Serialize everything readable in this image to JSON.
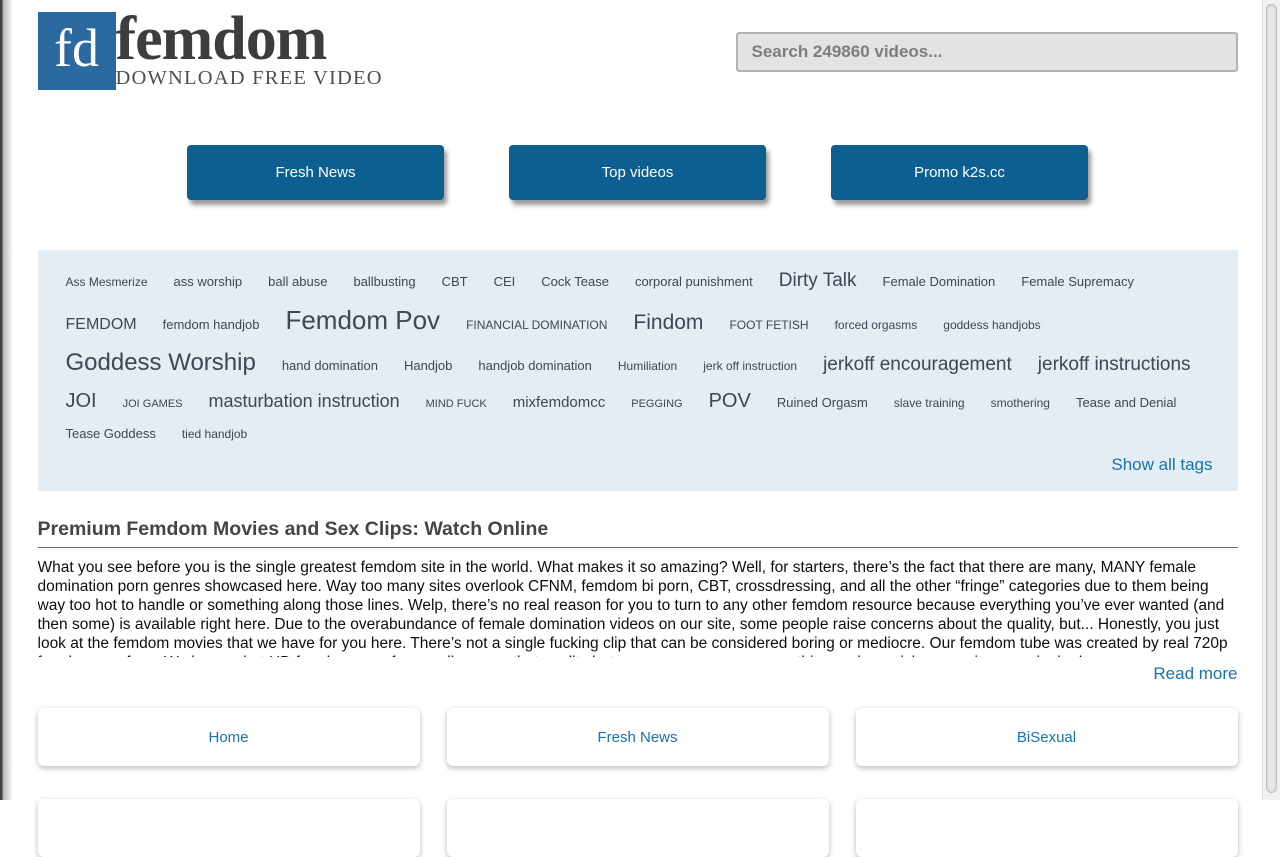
{
  "header": {
    "logo": {
      "abbr": "fd",
      "name": "femdom",
      "tagline": "DOWNLOAD FREE VIDEO"
    },
    "search": {
      "placeholder": "Search 249860 videos..."
    }
  },
  "nav": {
    "buttons": [
      {
        "label": "Fresh News"
      },
      {
        "label": "Top videos"
      },
      {
        "label": "Promo k2s.cc"
      }
    ]
  },
  "tag_cloud": {
    "show_all_label": "Show all tags",
    "tags": [
      {
        "label": "Ass Mesmerize",
        "size": 12
      },
      {
        "label": "ass worship",
        "size": 13
      },
      {
        "label": "ball abuse",
        "size": 13
      },
      {
        "label": "ballbusting",
        "size": 13
      },
      {
        "label": "CBT",
        "size": 13
      },
      {
        "label": "CEI",
        "size": 13
      },
      {
        "label": "Cock Tease",
        "size": 13
      },
      {
        "label": "corporal punishment",
        "size": 13
      },
      {
        "label": "Dirty Talk",
        "size": 19
      },
      {
        "label": "Female Domination",
        "size": 13
      },
      {
        "label": "Female Supremacy",
        "size": 13
      },
      {
        "label": "FEMDOM",
        "size": 16
      },
      {
        "label": "femdom handjob",
        "size": 13
      },
      {
        "label": "Femdom Pov",
        "size": 26
      },
      {
        "label": "FINANCIAL DOMINATION",
        "size": 12
      },
      {
        "label": "Findom",
        "size": 21
      },
      {
        "label": "FOOT FETISH",
        "size": 12
      },
      {
        "label": "forced orgasms",
        "size": 12
      },
      {
        "label": "goddess handjobs",
        "size": 12
      },
      {
        "label": "Goddess Worship",
        "size": 24
      },
      {
        "label": "hand domination",
        "size": 13
      },
      {
        "label": "Handjob",
        "size": 13
      },
      {
        "label": "handjob domination",
        "size": 13
      },
      {
        "label": "Humiliation",
        "size": 12
      },
      {
        "label": "jerk off instruction",
        "size": 12
      },
      {
        "label": "jerkoff encouragement",
        "size": 19
      },
      {
        "label": "jerkoff instructions",
        "size": 19
      },
      {
        "label": "JOI",
        "size": 20
      },
      {
        "label": "JOI GAMES",
        "size": 11
      },
      {
        "label": "masturbation instruction",
        "size": 18
      },
      {
        "label": "MIND FUCK",
        "size": 11
      },
      {
        "label": "mixfemdomcc",
        "size": 15
      },
      {
        "label": "PEGGING",
        "size": 11
      },
      {
        "label": "POV",
        "size": 20
      },
      {
        "label": "Ruined Orgasm",
        "size": 13
      },
      {
        "label": "slave training",
        "size": 12
      },
      {
        "label": "smothering",
        "size": 12
      },
      {
        "label": "Tease and Denial",
        "size": 13
      },
      {
        "label": "Tease Goddess",
        "size": 13
      },
      {
        "label": "tied handjob",
        "size": 12
      }
    ]
  },
  "article": {
    "title": "Premium Femdom Movies and Sex Clips: Watch Online",
    "body": "What you see before you is the single greatest femdom site in the world. What makes it so amazing? Well, for starters, there’s the fact that there are many, MANY female domination porn genres showcased here. Way too many sites overlook CFNM, femdom bi porn, CBT, crossdressing, and all the other “fringe” categories due to them being way too hot to handle or something along those lines. Welp, there’s no real reason for you to turn to any other femdom resource because everything you’ve ever wanted (and then some) is available right here. Due to the overabundance of female domination videos on our site, some people raise concerns about the quality, but... Honestly, you just look at the femdom movies that we have for you here. There’s not a single fucking clip that can be considered boring or mediocre. Our femdom tube was created by real 720p femdom sex fans. We know what HD femdom porn fans really crave, that quality between scenes means everything and our picks prove it every single day.",
    "read_more_label": "Read more"
  },
  "link_cards": {
    "labels": [
      "Home",
      "Fresh News",
      "BiSexual"
    ]
  },
  "colors": {
    "button_blue": "#0d5e91",
    "logo_blue": "#2b6aa0",
    "link_blue": "#1673b1",
    "panel_bg": "#e4edf3",
    "tag_text": "#3e4753"
  }
}
